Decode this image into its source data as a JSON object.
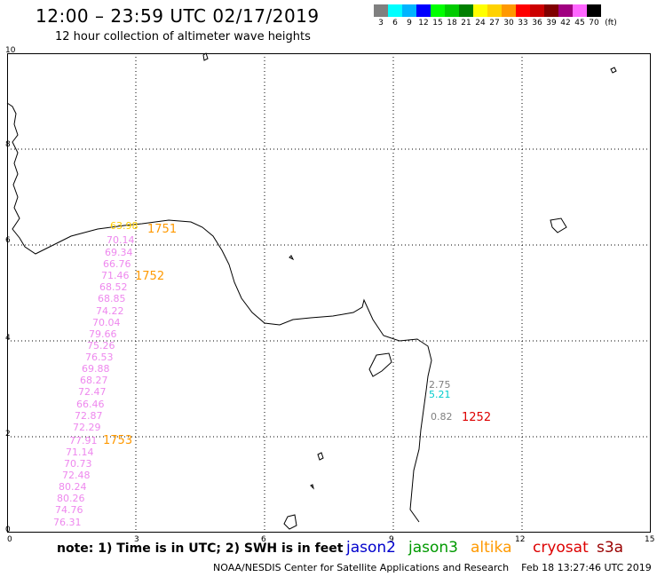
{
  "header": {
    "title": "12:00 – 23:59 UTC 02/17/2019",
    "subtitle": "12 hour collection of altimeter wave heights"
  },
  "color_scale": {
    "unit": "(ft)",
    "bins": [
      {
        "label": "3",
        "color": "#808080"
      },
      {
        "label": "6",
        "color": "#00ffff"
      },
      {
        "label": "9",
        "color": "#00b4ff"
      },
      {
        "label": "12",
        "color": "#0000ff"
      },
      {
        "label": "15",
        "color": "#00ff00"
      },
      {
        "label": "18",
        "color": "#00cc00"
      },
      {
        "label": "21",
        "color": "#008000"
      },
      {
        "label": "24",
        "color": "#ffff00"
      },
      {
        "label": "27",
        "color": "#ffd200"
      },
      {
        "label": "30",
        "color": "#ff9900"
      },
      {
        "label": "33",
        "color": "#ff0000"
      },
      {
        "label": "36",
        "color": "#cc0000"
      },
      {
        "label": "39",
        "color": "#800000"
      },
      {
        "label": "42",
        "color": "#a00080"
      },
      {
        "label": "45",
        "color": "#ff66ff"
      },
      {
        "label": "70",
        "color": "#000000"
      }
    ]
  },
  "axes": {
    "x_ticks": [
      "0",
      "3",
      "6",
      "9",
      "12",
      "15"
    ],
    "y_ticks": [
      "10",
      "8",
      "6",
      "4",
      "2",
      "0"
    ]
  },
  "pass_labels": [
    {
      "text": "1751",
      "color": "#ff9900"
    },
    {
      "text": "1752",
      "color": "#ff9900"
    },
    {
      "text": "1753",
      "color": "#ff9900"
    },
    {
      "text": "1252",
      "color": "#dd0000"
    }
  ],
  "wave_heights": [
    {
      "text": "70.14",
      "color": "#ee88ee"
    },
    {
      "text": "69.34",
      "color": "#ee88ee"
    },
    {
      "text": "66.76",
      "color": "#ee88ee"
    },
    {
      "text": "71.46",
      "color": "#ee88ee"
    },
    {
      "text": "68.52",
      "color": "#ee88ee"
    },
    {
      "text": "68.85",
      "color": "#ee88ee"
    },
    {
      "text": "74.22",
      "color": "#ee88ee"
    },
    {
      "text": "70.04",
      "color": "#ee88ee"
    },
    {
      "text": "79.66",
      "color": "#ee88ee"
    },
    {
      "text": "75.26",
      "color": "#ee88ee"
    },
    {
      "text": "76.53",
      "color": "#ee88ee"
    },
    {
      "text": "69.88",
      "color": "#ee88ee"
    },
    {
      "text": "68.27",
      "color": "#ee88ee"
    },
    {
      "text": "72.47",
      "color": "#ee88ee"
    },
    {
      "text": "66.46",
      "color": "#ee88ee"
    },
    {
      "text": "72.87",
      "color": "#ee88ee"
    },
    {
      "text": "72.29",
      "color": "#ee88ee"
    },
    {
      "text": "77.91",
      "color": "#ee88ee"
    },
    {
      "text": "71.14",
      "color": "#ee88ee"
    },
    {
      "text": "70.73",
      "color": "#ee88ee"
    },
    {
      "text": "72.48",
      "color": "#ee88ee"
    },
    {
      "text": "80.24",
      "color": "#ee88ee"
    },
    {
      "text": "80.26",
      "color": "#ee88ee"
    },
    {
      "text": "74.76",
      "color": "#ee88ee"
    },
    {
      "text": "76.31",
      "color": "#ee88ee"
    },
    {
      "text": "2.75",
      "color": "#808080"
    },
    {
      "text": "5.21",
      "color": "#00cccc"
    },
    {
      "text": "0.82",
      "color": "#808080"
    },
    {
      "text": "63.98",
      "color": "#ffcc00"
    }
  ],
  "footer": {
    "note": "note:  1) Time is in UTC;  2) SWH is in feet",
    "satellites": [
      {
        "name": "jason2",
        "color": "#0000cc"
      },
      {
        "name": "jason3",
        "color": "#009900"
      },
      {
        "name": "altika",
        "color": "#ff9900"
      },
      {
        "name": "cryosat",
        "color": "#dd0000"
      },
      {
        "name": "s3a",
        "color": "#990000"
      }
    ],
    "credit": "NOAA/NESDIS Center for Satellite Applications and Research",
    "generated": "Feb 18 13:27:46 UTC 2019"
  }
}
